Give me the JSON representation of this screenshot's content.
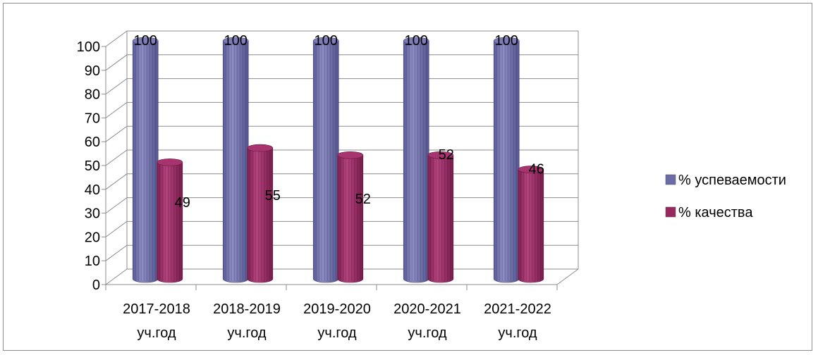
{
  "chart_data": {
    "type": "bar",
    "categories": [
      [
        "2017-2018",
        "уч.год"
      ],
      [
        "2018-2019",
        "уч.год"
      ],
      [
        "2019-2020",
        "уч.год"
      ],
      [
        "2020-2021",
        "уч.год"
      ],
      [
        "2021-2022",
        "уч.год"
      ]
    ],
    "series": [
      {
        "name": "% успеваемости",
        "values": [
          100,
          100,
          100,
          100,
          100
        ],
        "color": "#6b6ba6"
      },
      {
        "name": "% качества",
        "values": [
          49,
          55,
          52,
          52,
          46
        ],
        "color": "#96285f"
      }
    ],
    "ylim": [
      0,
      100
    ],
    "yticks": [
      0,
      10,
      20,
      30,
      40,
      50,
      60,
      70,
      80,
      90,
      100
    ],
    "grid": true,
    "legend_position": "right",
    "style": "3d-cylinder"
  }
}
